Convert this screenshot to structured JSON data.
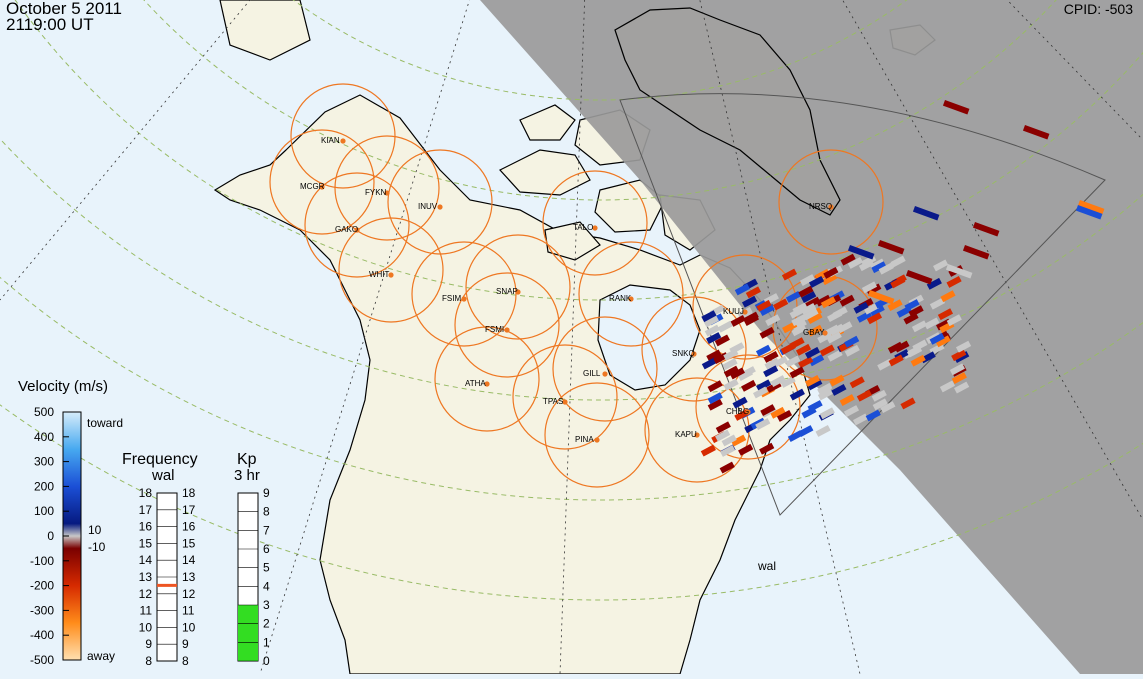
{
  "header": {
    "date": "October  5 2011",
    "time": "2119:00 UT",
    "cpid": "CPID:  -503"
  },
  "colors": {
    "ocean": "#e8f3fb",
    "land": "#f5f3e3",
    "night": "#9a9a9a",
    "range_circle": "#ee7722",
    "station_dot": "#ee7722",
    "grid_line": "#99bb66",
    "scan_gray": "#c8c8c8"
  },
  "stations": [
    {
      "code": "KIAN"
    },
    {
      "code": "MCGR"
    },
    {
      "code": "FYKN"
    },
    {
      "code": "INUV"
    },
    {
      "code": "GAKO"
    },
    {
      "code": "WHIT"
    },
    {
      "code": "TALO"
    },
    {
      "code": "FSIM"
    },
    {
      "code": "SNAP"
    },
    {
      "code": "FSMI"
    },
    {
      "code": "RANK"
    },
    {
      "code": "KUUJ"
    },
    {
      "code": "GBAY"
    },
    {
      "code": "SNKQ"
    },
    {
      "code": "ATHA"
    },
    {
      "code": "GILL"
    },
    {
      "code": "TPAS"
    },
    {
      "code": "CHBG"
    },
    {
      "code": "KAPU"
    },
    {
      "code": "PINA"
    },
    {
      "code": "NRSQ"
    }
  ],
  "radar_label": "wal",
  "velocity_scale": {
    "title": "Velocity (m/s)",
    "toward": "toward",
    "away": "away",
    "ticks": [
      "500",
      "400",
      "300",
      "200",
      "100",
      "0",
      "-100",
      "-200",
      "-300",
      "-400",
      "-500"
    ],
    "mark_pos": "10",
    "mark_neg": "-10"
  },
  "frequency_scale": {
    "title": "Frequency",
    "subtitle": "wal",
    "ticks": [
      "18",
      "17",
      "16",
      "15",
      "14",
      "13",
      "12",
      "11",
      "10",
      "9",
      "8"
    ],
    "current_mhz": 12.5
  },
  "kp_scale": {
    "title": "Kp",
    "subtitle": "3 hr",
    "ticks": [
      "9",
      "8",
      "7",
      "6",
      "5",
      "4",
      "3",
      "2",
      "1",
      "0"
    ],
    "value": 3
  }
}
